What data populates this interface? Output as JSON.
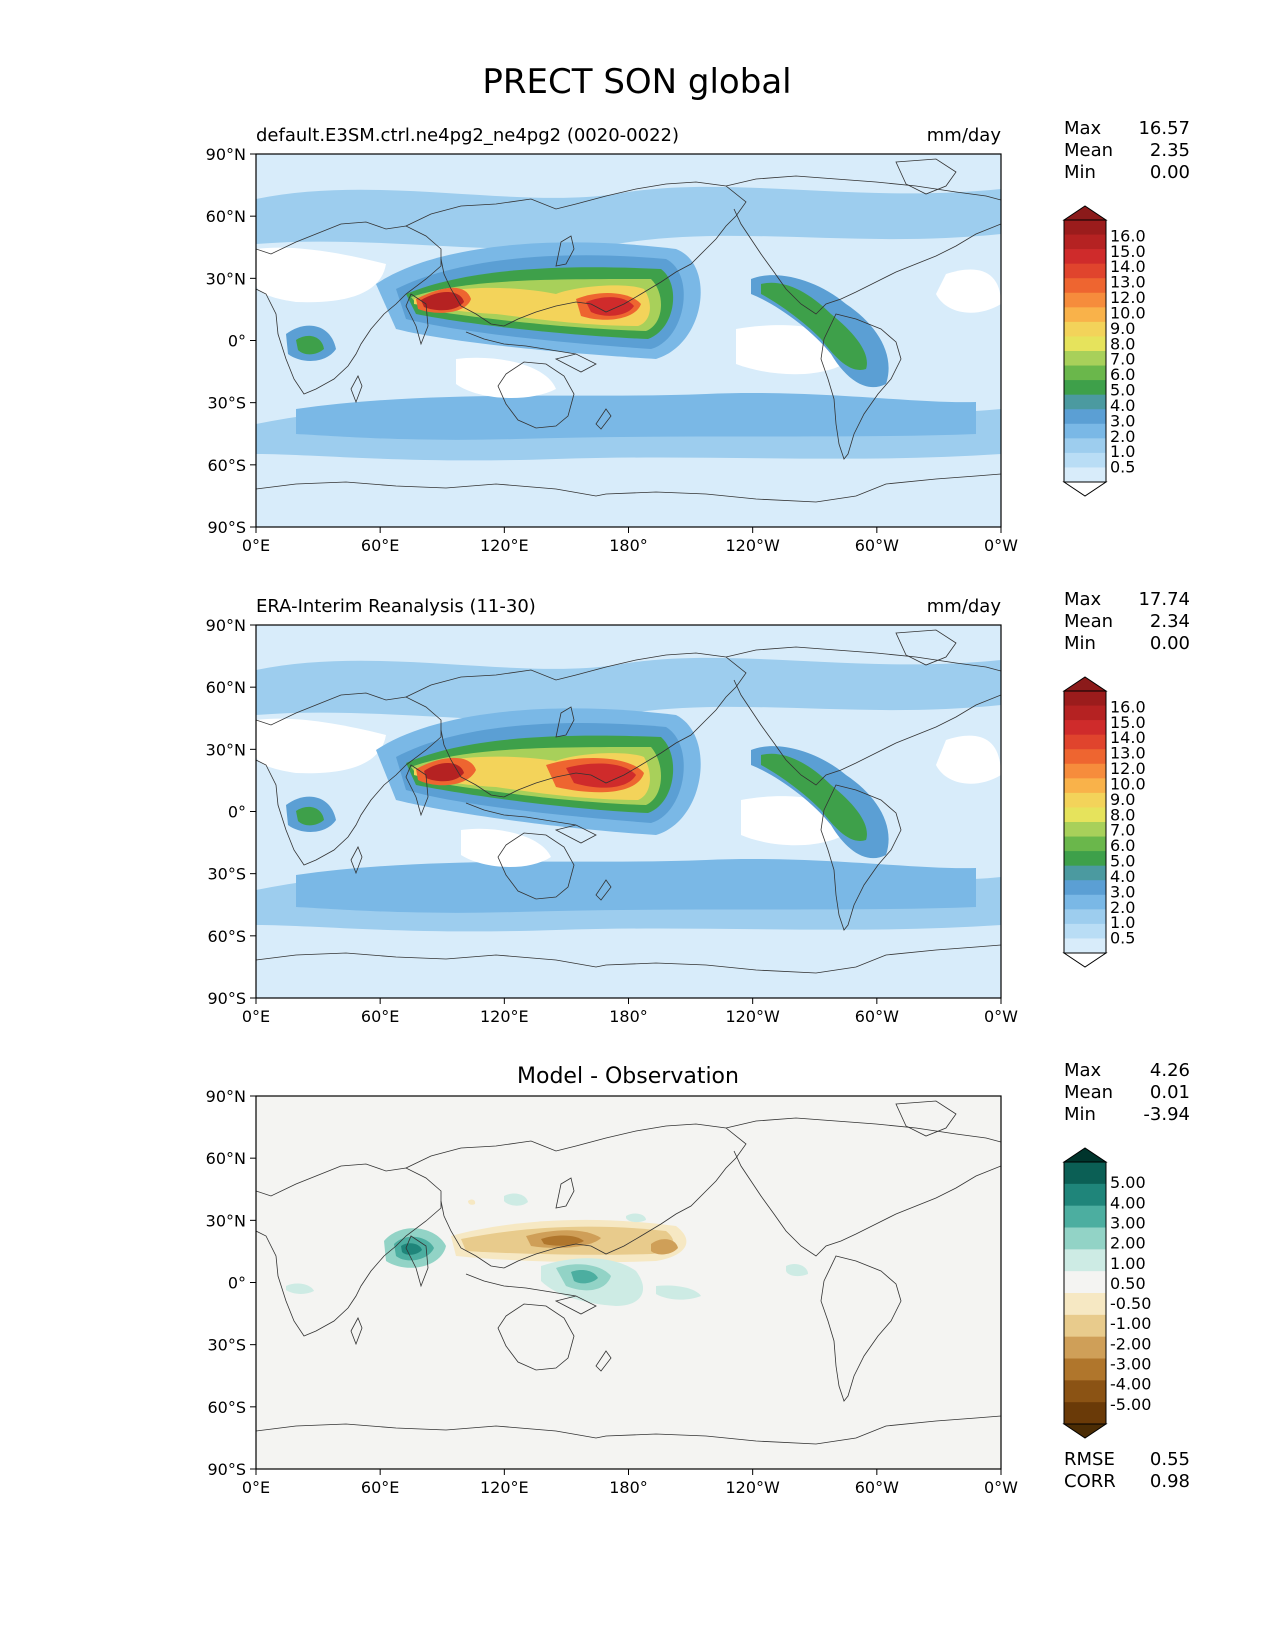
{
  "figure_title": "PRECT SON global",
  "colors": {
    "land_line": "#333333",
    "diff_background": "#f4f4f2"
  },
  "chart_data": [
    {
      "type": "heatmap",
      "id": "model",
      "title_left": "default.E3SM.ctrl.ne4pg2_ne4pg2 (0020-0022)",
      "title_right": "mm/day",
      "title_center": "",
      "xlabel": "",
      "ylabel": "",
      "xlim": [
        0,
        360
      ],
      "ylim": [
        -90,
        90
      ],
      "x_ticks": [
        "0°E",
        "60°E",
        "120°E",
        "180°",
        "120°W",
        "60°W",
        "0°W"
      ],
      "y_ticks": [
        "90°N",
        "60°N",
        "30°N",
        "0°",
        "30°S",
        "60°S",
        "90°S"
      ],
      "stats": [
        {
          "label": "Max",
          "value": "16.57"
        },
        {
          "label": "Mean",
          "value": "2.35"
        },
        {
          "label": "Min",
          "value": "0.00"
        }
      ],
      "colorbar_labels": [
        "16.0",
        "15.0",
        "14.0",
        "13.0",
        "12.0",
        "10.0",
        "9.0",
        "8.0",
        "7.0",
        "6.0",
        "5.0",
        "4.0",
        "3.0",
        "2.0",
        "1.0",
        "0.5"
      ],
      "colorbar_colors": [
        "#9b1c1c",
        "#b52222",
        "#cf2b2b",
        "#e0442d",
        "#ee6530",
        "#f68c3c",
        "#f9b24a",
        "#f3d35a",
        "#e6e35c",
        "#a8d05a",
        "#6ab74b",
        "#3ea04a",
        "#4b9aa0",
        "#5b9fd4",
        "#7ab8e6",
        "#9dcdee",
        "#b9ddf5",
        "#d8ecfa"
      ],
      "extend_top": "#8b1a1a",
      "extend_bottom": "#ffffff"
    },
    {
      "type": "heatmap",
      "id": "obs",
      "title_left": "ERA-Interim Reanalysis (11-30)",
      "title_right": "mm/day",
      "title_center": "",
      "xlabel": "",
      "ylabel": "",
      "xlim": [
        0,
        360
      ],
      "ylim": [
        -90,
        90
      ],
      "x_ticks": [
        "0°E",
        "60°E",
        "120°E",
        "180°",
        "120°W",
        "60°W",
        "0°W"
      ],
      "y_ticks": [
        "90°N",
        "60°N",
        "30°N",
        "0°",
        "30°S",
        "60°S",
        "90°S"
      ],
      "stats": [
        {
          "label": "Max",
          "value": "17.74"
        },
        {
          "label": "Mean",
          "value": "2.34"
        },
        {
          "label": "Min",
          "value": "0.00"
        }
      ],
      "colorbar_labels": [
        "16.0",
        "15.0",
        "14.0",
        "13.0",
        "12.0",
        "10.0",
        "9.0",
        "8.0",
        "7.0",
        "6.0",
        "5.0",
        "4.0",
        "3.0",
        "2.0",
        "1.0",
        "0.5"
      ],
      "colorbar_colors": [
        "#9b1c1c",
        "#b52222",
        "#cf2b2b",
        "#e0442d",
        "#ee6530",
        "#f68c3c",
        "#f9b24a",
        "#f3d35a",
        "#e6e35c",
        "#a8d05a",
        "#6ab74b",
        "#3ea04a",
        "#4b9aa0",
        "#5b9fd4",
        "#7ab8e6",
        "#9dcdee",
        "#b9ddf5",
        "#d8ecfa"
      ],
      "extend_top": "#8b1a1a",
      "extend_bottom": "#ffffff"
    },
    {
      "type": "heatmap",
      "id": "diff",
      "title_left": "",
      "title_right": "",
      "title_center": "Model - Observation",
      "xlabel": "",
      "ylabel": "",
      "xlim": [
        0,
        360
      ],
      "ylim": [
        -90,
        90
      ],
      "x_ticks": [
        "0°E",
        "60°E",
        "120°E",
        "180°",
        "120°W",
        "60°W",
        "0°W"
      ],
      "y_ticks": [
        "90°N",
        "60°N",
        "30°N",
        "0°",
        "30°S",
        "60°S",
        "90°S"
      ],
      "stats": [
        {
          "label": "Max",
          "value": "4.26"
        },
        {
          "label": "Mean",
          "value": "0.01"
        },
        {
          "label": "Min",
          "value": "-3.94"
        }
      ],
      "colorbar_labels": [
        "5.00",
        "4.00",
        "3.00",
        "2.00",
        "1.00",
        "0.50",
        "-0.50",
        "-1.00",
        "-2.00",
        "-3.00",
        "-4.00",
        "-5.00"
      ],
      "colorbar_colors": [
        "#0b5f55",
        "#1f857a",
        "#4caea0",
        "#92d3c6",
        "#cdebe4",
        "#f4f4f2",
        "#f6e8c3",
        "#e8cb8c",
        "#cf9f58",
        "#b0762c",
        "#8b5314",
        "#6a3a08"
      ],
      "extend_top": "#00342c",
      "extend_bottom": "#4b2c04",
      "metrics": [
        {
          "label": "RMSE",
          "value": "0.55"
        },
        {
          "label": "CORR",
          "value": "0.98"
        }
      ]
    }
  ]
}
